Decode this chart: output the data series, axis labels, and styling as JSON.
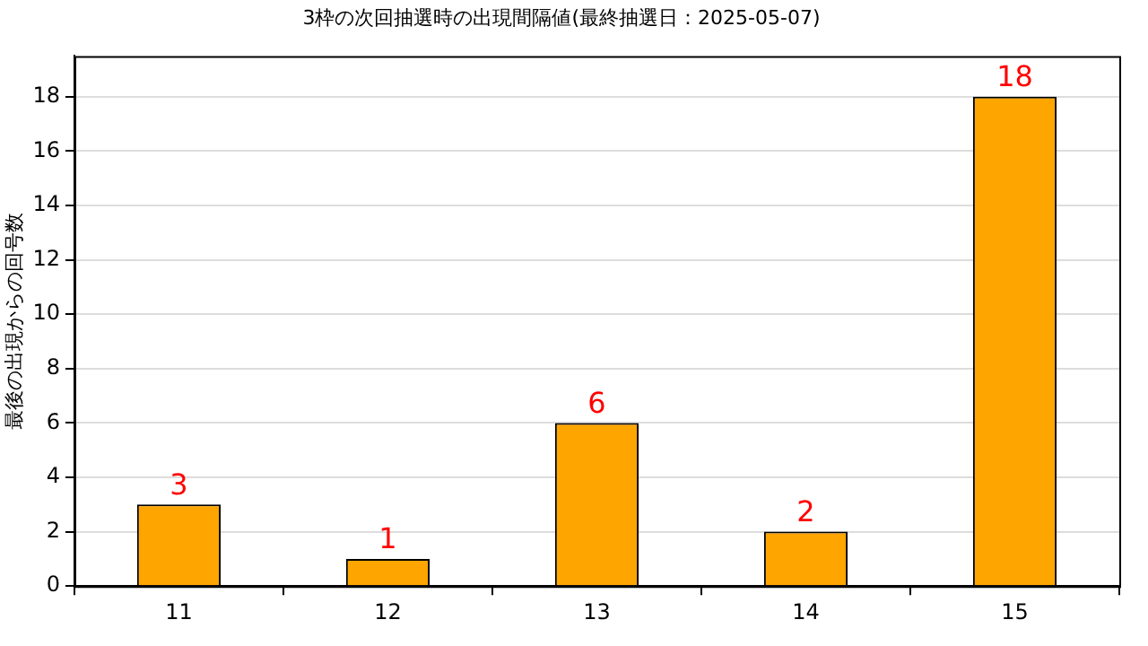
{
  "chart_data": {
    "type": "bar",
    "title": "3枠の次回抽選時の出現間隔値(最終抽選日：2025-05-07)",
    "ylabel": "最後の出現からの回号数",
    "categories": [
      "11",
      "12",
      "13",
      "14",
      "15"
    ],
    "values": [
      3,
      1,
      6,
      2,
      18
    ],
    "color": "#ffa500",
    "ylim": [
      0,
      19.5
    ],
    "yticks": [
      0,
      2,
      4,
      6,
      8,
      10,
      12,
      14,
      16,
      18
    ],
    "grid": "y",
    "data_labels": true
  }
}
